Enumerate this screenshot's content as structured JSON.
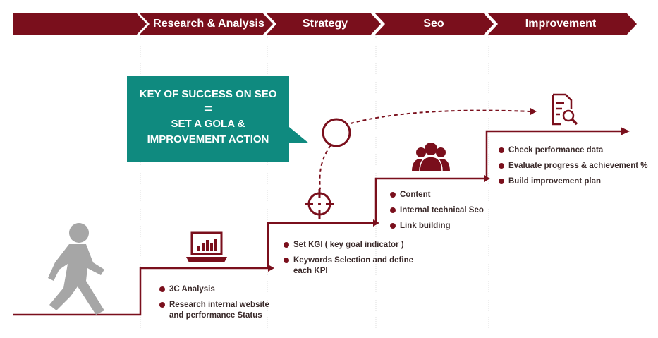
{
  "colors": {
    "primary": "#7a0f1c",
    "callout": "#0f8a7f",
    "icon_gray": "#a6a6a6"
  },
  "header": {
    "steps": [
      "",
      "Research & Analysis",
      "Strategy",
      "Seo",
      "Improvement"
    ]
  },
  "callout": {
    "line1": "KEY OF SUCCESS ON SEO",
    "line2": "=",
    "line3": "SET A GOLA &",
    "line4": "IMPROVEMENT ACTION"
  },
  "stages": {
    "research": {
      "icon": "laptop-chart-icon",
      "items": [
        "3C Analysis",
        "Research internal  website and performance Status"
      ]
    },
    "strategy": {
      "icon": "target-crosshair-icon",
      "items": [
        "Set KGI ( key goal indicator )",
        "Keywords Selection and define each KPI"
      ]
    },
    "seo": {
      "icon": "team-people-icon",
      "items": [
        "Content",
        "Internal technical Seo",
        "Link building"
      ]
    },
    "improvement": {
      "icon": "document-search-icon",
      "items": [
        "Check performance data",
        "Evaluate progress & achievement %",
        "Build improvement plan"
      ]
    }
  },
  "walker_icon": "walking-person-icon"
}
